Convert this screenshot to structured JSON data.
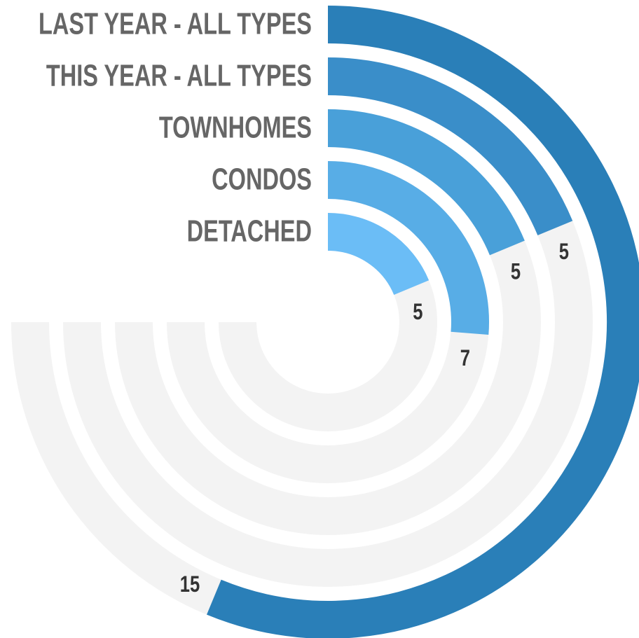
{
  "chart_data": {
    "type": "radial_bar",
    "categories": [
      "LAST YEAR - ALL TYPES",
      "THIS YEAR - ALL TYPES",
      "TOWNHOMES",
      "CONDOS",
      "DETACHED"
    ],
    "values": [
      15,
      5,
      5,
      7,
      5
    ],
    "colors": [
      "#2a7fb8",
      "#3a8ec9",
      "#49a0d9",
      "#58ade6",
      "#6bbdf6"
    ],
    "track_color": "#f3f3f3",
    "ylim": [
      0,
      20
    ]
  }
}
